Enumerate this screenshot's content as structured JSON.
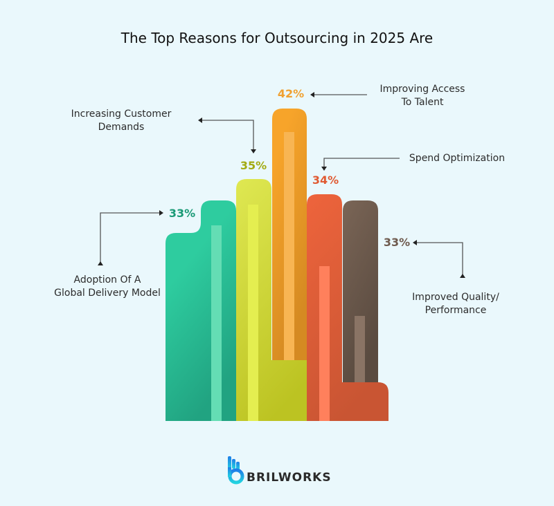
{
  "chart_data": {
    "type": "bar",
    "title": "The Top Reasons for Outsourcing in 2025 Are",
    "categories": [
      "Adoption Of A Global Delivery Model",
      "Increasing Customer Demands",
      "Improving Access To Talent",
      "Spend Optimization",
      "Improved Quality/ Performance"
    ],
    "values": [
      33,
      35,
      42,
      34,
      33
    ],
    "value_labels": [
      "33%",
      "35%",
      "42%",
      "34%",
      "33%"
    ],
    "label_lines": [
      [
        "Adoption Of A",
        "Global Delivery Model"
      ],
      [
        "Increasing Customer",
        "Demands"
      ],
      [
        "Improving Access",
        "To Talent"
      ],
      [
        "Spend Optimization"
      ],
      [
        "Improved Quality/",
        "Performance"
      ]
    ],
    "colors": [
      "#2ecc9f",
      "#dfe852",
      "#f7a42a",
      "#ee643c",
      "#7a6556"
    ],
    "value_label_colors": [
      "#1a9a76",
      "#a3ab12",
      "#f0a030",
      "#e05a32",
      "#6e5a4e"
    ],
    "grid": false,
    "legend": "none"
  },
  "brand": {
    "name": "BRILWORKS",
    "logo_icon": "brilworks-hand-b-logo"
  }
}
